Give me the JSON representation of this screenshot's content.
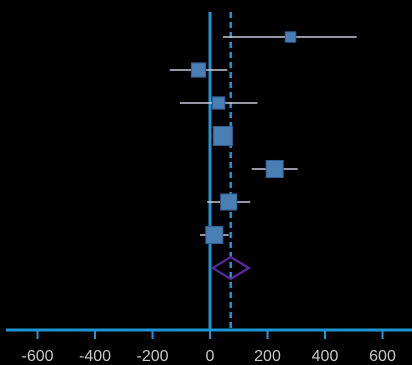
{
  "chart_data": {
    "type": "forest-plot",
    "title": "",
    "xlabel": "",
    "ylabel": "",
    "xlim": [
      -700,
      700
    ],
    "xticks": [
      -600,
      -400,
      -200,
      0,
      200,
      400,
      600
    ],
    "xtick_labels": [
      "-600",
      "-400",
      "-200",
      "0",
      "200",
      "400",
      "600"
    ],
    "null_line": 0,
    "pooled_line": 72,
    "studies": [
      {
        "estimate": 280,
        "ci_low": 45,
        "ci_high": 510,
        "weight": 0.55
      },
      {
        "estimate": -40,
        "ci_low": -140,
        "ci_high": 60,
        "weight": 0.75
      },
      {
        "estimate": 30,
        "ci_low": -105,
        "ci_high": 165,
        "weight": 0.65
      },
      {
        "estimate": 45,
        "ci_low": 10,
        "ci_high": 80,
        "weight": 1.0
      },
      {
        "estimate": 225,
        "ci_low": 145,
        "ci_high": 305,
        "weight": 0.9
      },
      {
        "estimate": 65,
        "ci_low": -10,
        "ci_high": 140,
        "weight": 0.85
      },
      {
        "estimate": 15,
        "ci_low": -35,
        "ci_high": 65,
        "weight": 0.9
      }
    ],
    "pooled": {
      "estimate": 72,
      "ci_low": 10,
      "ci_high": 135
    },
    "grid": false,
    "colors": {
      "background": "#000000",
      "axis": "#1e95d4",
      "null_line": "#1e95d4",
      "pooled_line": "#1e95d4",
      "marker_fill": "#4a7fb5",
      "marker_stroke": "#2f5f92",
      "ci_line": "#c8c8d8",
      "pooled_diamond": "#5a2aa0",
      "tick_label": "#c9c9c9"
    }
  }
}
